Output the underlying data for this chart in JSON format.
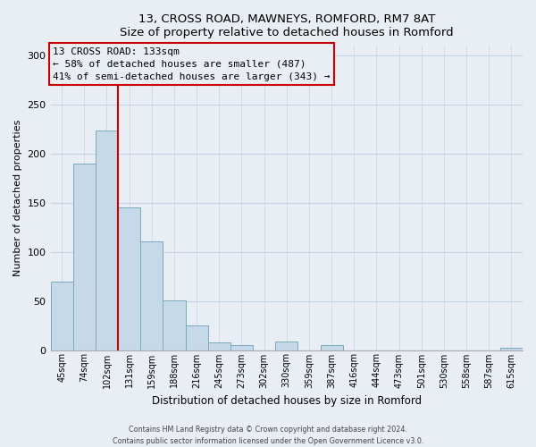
{
  "title": "13, CROSS ROAD, MAWNEYS, ROMFORD, RM7 8AT",
  "subtitle": "Size of property relative to detached houses in Romford",
  "xlabel": "Distribution of detached houses by size in Romford",
  "ylabel": "Number of detached properties",
  "bin_labels": [
    "45sqm",
    "74sqm",
    "102sqm",
    "131sqm",
    "159sqm",
    "188sqm",
    "216sqm",
    "245sqm",
    "273sqm",
    "302sqm",
    "330sqm",
    "359sqm",
    "387sqm",
    "416sqm",
    "444sqm",
    "473sqm",
    "501sqm",
    "530sqm",
    "558sqm",
    "587sqm",
    "615sqm"
  ],
  "bar_heights": [
    70,
    190,
    224,
    145,
    111,
    51,
    25,
    8,
    5,
    0,
    9,
    0,
    5,
    0,
    0,
    0,
    0,
    0,
    0,
    0,
    2
  ],
  "bar_color": "#c6d9e8",
  "bar_edgecolor": "#7aaabf",
  "property_bin_index": 3,
  "property_line_color": "#cc0000",
  "annotation_line1": "13 CROSS ROAD: 133sqm",
  "annotation_line2": "← 58% of detached houses are smaller (487)",
  "annotation_line3": "41% of semi-detached houses are larger (343) →",
  "annotation_box_edgecolor": "#cc0000",
  "ylim": [
    0,
    310
  ],
  "yticks": [
    0,
    50,
    100,
    150,
    200,
    250,
    300
  ],
  "footnote1": "Contains HM Land Registry data © Crown copyright and database right 2024.",
  "footnote2": "Contains public sector information licensed under the Open Government Licence v3.0.",
  "fig_facecolor": "#e8eef4",
  "plot_facecolor": "#e8eef4",
  "grid_color": "#c5d5e5"
}
